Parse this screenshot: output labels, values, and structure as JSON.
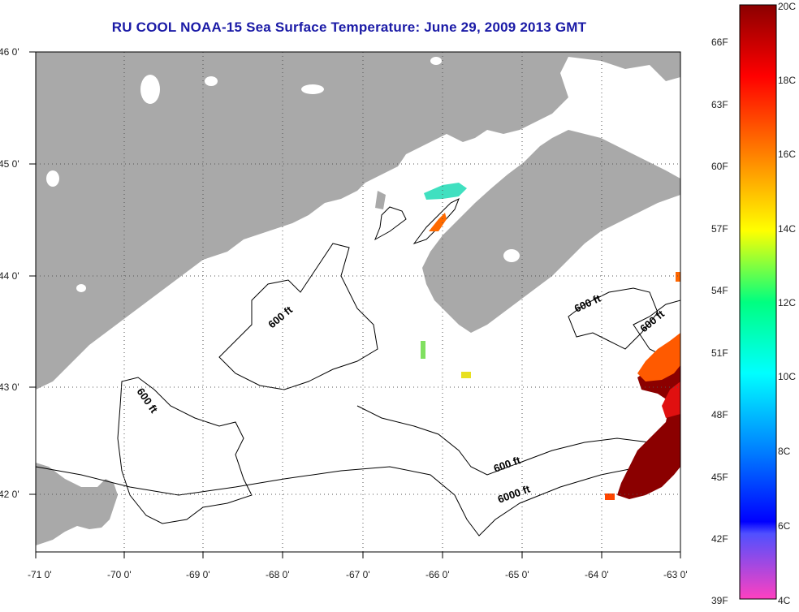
{
  "title": "RU COOL  NOAA-15  Sea Surface Temperature:  June 29, 2009 2013 GMT",
  "lat_ticks": [
    "46 0'",
    "45 0'",
    "44 0'",
    "43 0'",
    "42 0'"
  ],
  "lon_ticks": [
    "-71 0'",
    "-70 0'",
    "-69 0'",
    "-68 0'",
    "-67 0'",
    "-66 0'",
    "-65 0'",
    "-64 0'",
    "-63 0'"
  ],
  "contour_labels": [
    "600 ft",
    "600 ft",
    "600 ft",
    "600 ft",
    "600 ft",
    "6000 ft"
  ],
  "colorbar": {
    "celsius": [
      "20C",
      "18C",
      "16C",
      "14C",
      "12C",
      "10C",
      "8C",
      "6C",
      "4C"
    ],
    "fahrenheit": [
      "66F",
      "63F",
      "60F",
      "57F",
      "54F",
      "51F",
      "48F",
      "45F",
      "42F",
      "39F"
    ]
  },
  "colors": {
    "land": "#a9a9a9",
    "water": "#ffffff",
    "title": "#1a1aa6",
    "warm_sst": "#8b0000",
    "mid_sst": "#ff4500"
  }
}
